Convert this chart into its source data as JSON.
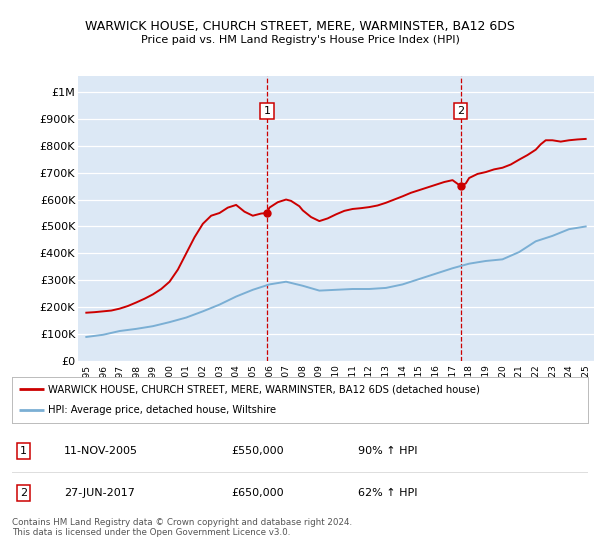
{
  "title": "WARWICK HOUSE, CHURCH STREET, MERE, WARMINSTER, BA12 6DS",
  "subtitle": "Price paid vs. HM Land Registry's House Price Index (HPI)",
  "plot_bg_color": "#dce8f5",
  "hpi_x": [
    1995,
    1996,
    1997,
    1998,
    1999,
    2000,
    2001,
    2002,
    2003,
    2004,
    2005,
    2006,
    2007,
    2008,
    2009,
    2010,
    2011,
    2012,
    2013,
    2014,
    2015,
    2016,
    2017,
    2018,
    2019,
    2020,
    2021,
    2022,
    2023,
    2024,
    2025
  ],
  "hpi_y": [
    90000,
    98000,
    112000,
    120000,
    130000,
    145000,
    162000,
    185000,
    210000,
    240000,
    265000,
    285000,
    295000,
    280000,
    262000,
    265000,
    268000,
    268000,
    272000,
    285000,
    305000,
    325000,
    345000,
    362000,
    372000,
    378000,
    405000,
    445000,
    465000,
    490000,
    500000
  ],
  "red_x": [
    1995.0,
    1995.5,
    1996.0,
    1996.5,
    1997.0,
    1997.5,
    1998.0,
    1998.5,
    1999.0,
    1999.5,
    2000.0,
    2000.5,
    2001.0,
    2001.5,
    2002.0,
    2002.5,
    2003.0,
    2003.5,
    2004.0,
    2004.5,
    2005.0,
    2005.5,
    2005.86,
    2006.0,
    2006.5,
    2007.0,
    2007.3,
    2007.8,
    2008.0,
    2008.5,
    2009.0,
    2009.5,
    2010.0,
    2010.5,
    2011.0,
    2011.5,
    2012.0,
    2012.5,
    2013.0,
    2013.5,
    2014.0,
    2014.5,
    2015.0,
    2015.5,
    2016.0,
    2016.5,
    2017.0,
    2017.49,
    2017.8,
    2018.0,
    2018.5,
    2019.0,
    2019.5,
    2020.0,
    2020.5,
    2021.0,
    2021.5,
    2022.0,
    2022.3,
    2022.6,
    2023.0,
    2023.5,
    2024.0,
    2024.5,
    2025.0
  ],
  "red_y": [
    180000,
    182000,
    185000,
    188000,
    195000,
    205000,
    218000,
    232000,
    248000,
    268000,
    295000,
    340000,
    400000,
    460000,
    510000,
    540000,
    550000,
    570000,
    580000,
    555000,
    540000,
    548000,
    550000,
    570000,
    590000,
    600000,
    595000,
    575000,
    560000,
    535000,
    520000,
    530000,
    545000,
    558000,
    565000,
    568000,
    572000,
    578000,
    588000,
    600000,
    612000,
    625000,
    635000,
    645000,
    655000,
    665000,
    672000,
    650000,
    660000,
    680000,
    695000,
    702000,
    712000,
    718000,
    730000,
    748000,
    765000,
    785000,
    805000,
    820000,
    820000,
    815000,
    820000,
    823000,
    825000
  ],
  "sale1_x": 2005.86,
  "sale1_y": 550000,
  "sale2_x": 2017.49,
  "sale2_y": 650000,
  "ytick_values": [
    0,
    100000,
    200000,
    300000,
    400000,
    500000,
    600000,
    700000,
    800000,
    900000,
    1000000
  ],
  "ytick_labels": [
    "£0",
    "£100K",
    "£200K",
    "£300K",
    "£400K",
    "£500K",
    "£600K",
    "£700K",
    "£800K",
    "£900K",
    "£1M"
  ],
  "ylim": [
    0,
    1060000
  ],
  "xlim_left": 1994.5,
  "xlim_right": 2025.5,
  "xtick_years": [
    1995,
    1996,
    1997,
    1998,
    1999,
    2000,
    2001,
    2002,
    2003,
    2004,
    2005,
    2006,
    2007,
    2008,
    2009,
    2010,
    2011,
    2012,
    2013,
    2014,
    2015,
    2016,
    2017,
    2018,
    2019,
    2020,
    2021,
    2022,
    2023,
    2024,
    2025
  ],
  "legend_red_label": "WARWICK HOUSE, CHURCH STREET, MERE, WARMINSTER, BA12 6DS (detached house)",
  "legend_blue_label": "HPI: Average price, detached house, Wiltshire",
  "red_color": "#cc0000",
  "blue_color": "#7bafd4",
  "ann1_date": "11-NOV-2005",
  "ann1_price": "£550,000",
  "ann1_hpi": "90% ↑ HPI",
  "ann2_date": "27-JUN-2017",
  "ann2_price": "£650,000",
  "ann2_hpi": "62% ↑ HPI",
  "footer": "Contains HM Land Registry data © Crown copyright and database right 2024.\nThis data is licensed under the Open Government Licence v3.0."
}
